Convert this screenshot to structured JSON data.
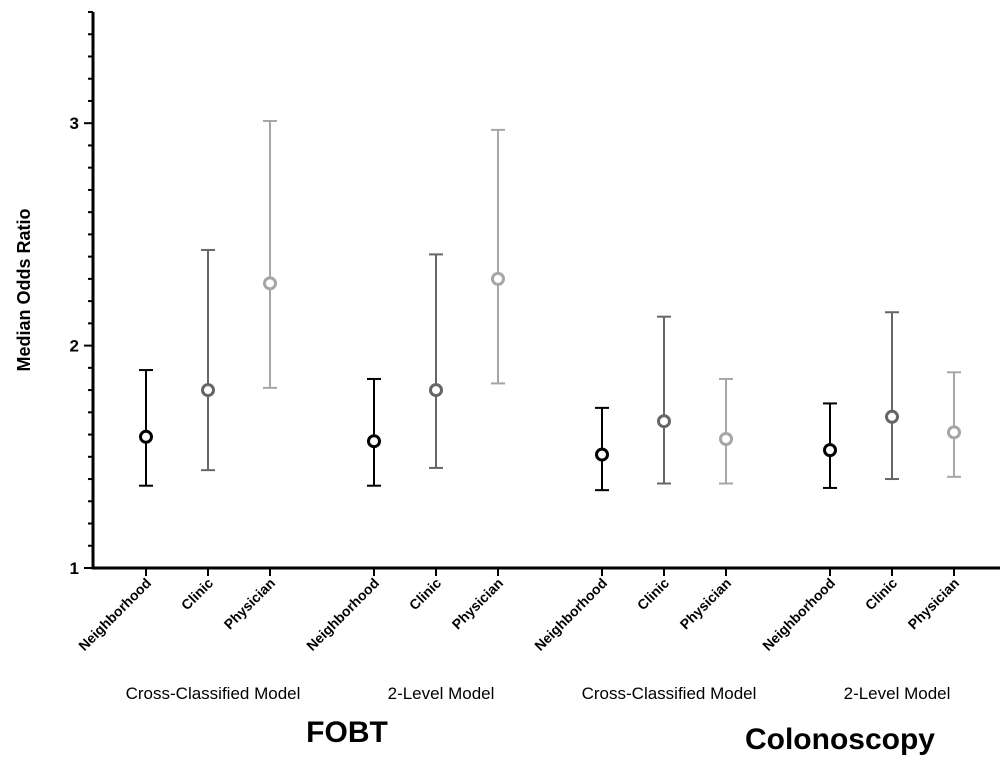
{
  "chart_data": {
    "type": "scatter",
    "ylabel": "Median Odds Ratio",
    "ylim": [
      1,
      3.5
    ],
    "yticks": [
      1,
      2,
      3
    ],
    "series_colors": {
      "Neighborhood": "#000000",
      "Clinic": "#666666",
      "Physician": "#a6a6a6"
    },
    "groups": [
      {
        "outcome": "FOBT",
        "model": "Cross-Classified Model",
        "points": [
          {
            "category": "Neighborhood",
            "value": 1.59,
            "lower": 1.37,
            "upper": 1.89
          },
          {
            "category": "Clinic",
            "value": 1.8,
            "lower": 1.44,
            "upper": 2.43
          },
          {
            "category": "Physician",
            "value": 2.28,
            "lower": 1.81,
            "upper": 3.01
          }
        ]
      },
      {
        "outcome": "FOBT",
        "model": "2-Level Model",
        "points": [
          {
            "category": "Neighborhood",
            "value": 1.57,
            "lower": 1.37,
            "upper": 1.85
          },
          {
            "category": "Clinic",
            "value": 1.8,
            "lower": 1.45,
            "upper": 2.41
          },
          {
            "category": "Physician",
            "value": 2.3,
            "lower": 1.83,
            "upper": 2.97
          }
        ]
      },
      {
        "outcome": "Colonoscopy",
        "model": "Cross-Classified Model",
        "points": [
          {
            "category": "Neighborhood",
            "value": 1.51,
            "lower": 1.35,
            "upper": 1.72
          },
          {
            "category": "Clinic",
            "value": 1.66,
            "lower": 1.38,
            "upper": 2.13
          },
          {
            "category": "Physician",
            "value": 1.58,
            "lower": 1.38,
            "upper": 1.85
          }
        ]
      },
      {
        "outcome": "Colonoscopy",
        "model": "2-Level Model",
        "points": [
          {
            "category": "Neighborhood",
            "value": 1.53,
            "lower": 1.36,
            "upper": 1.74
          },
          {
            "category": "Clinic",
            "value": 1.68,
            "lower": 1.4,
            "upper": 2.15
          },
          {
            "category": "Physician",
            "value": 1.61,
            "lower": 1.41,
            "upper": 1.88
          }
        ]
      }
    ],
    "outcome_labels": [
      "FOBT",
      "Colonoscopy"
    ]
  }
}
